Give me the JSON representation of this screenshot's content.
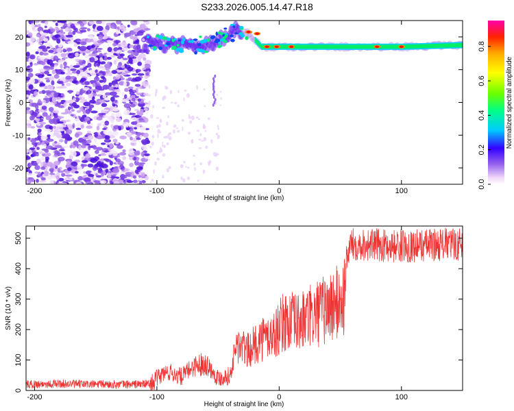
{
  "page_title": "S233.2026.005.14.47.R18",
  "chart_data": [
    {
      "type": "heatmap",
      "xlabel": "Height of straight line (km)",
      "ylabel": "Frequency (Hz)",
      "xlim": [
        -207,
        150
      ],
      "ylim": [
        -25,
        25
      ],
      "xticks": [
        -200,
        -100,
        0,
        100
      ],
      "yticks": [
        -20,
        -10,
        0,
        10,
        20
      ],
      "tick_labels_x": [
        "-200",
        "-100",
        "0",
        "100"
      ],
      "tick_labels_y": [
        "-20",
        "-10",
        "0",
        "10",
        "20"
      ],
      "colorbar": {
        "label": "Normalized spectral amplitude",
        "range": [
          0.0,
          0.95
        ],
        "ticks": [
          0.0,
          0.2,
          0.4,
          0.6,
          0.8
        ],
        "tick_labels": [
          "0.0",
          "0.2",
          "0.4",
          "0.6",
          "0.8"
        ]
      },
      "features": {
        "noise_region_x": [
          -207,
          -107
        ],
        "ridge": [
          [
            -110,
            18
          ],
          [
            -90,
            18
          ],
          [
            -70,
            17.5
          ],
          [
            -55,
            18
          ],
          [
            -45,
            20
          ],
          [
            -35,
            22
          ],
          [
            -25,
            21
          ],
          [
            -15,
            17
          ],
          [
            0,
            17
          ],
          [
            20,
            17
          ],
          [
            60,
            17
          ],
          [
            100,
            17
          ],
          [
            150,
            17.5
          ]
        ]
      },
      "grid": false
    },
    {
      "type": "line",
      "xlabel": "Height of straight line (km)",
      "ylabel": "SNR (10 * v/v)",
      "xlim": [
        -207,
        150
      ],
      "ylim": [
        0,
        540
      ],
      "xticks": [
        -200,
        -100,
        0,
        100
      ],
      "yticks": [
        0,
        100,
        200,
        300,
        400,
        500
      ],
      "tick_labels_x": [
        "-200",
        "-100",
        "0",
        "100"
      ],
      "tick_labels_y": [
        "0",
        "100",
        "200",
        "300",
        "400",
        "500"
      ],
      "series": [
        {
          "color": "#ee3333",
          "x": [
            -207,
            -180,
            -150,
            -120,
            -105,
            -95,
            -90,
            -80,
            -70,
            -60,
            -50,
            -40,
            -35,
            -25,
            -15,
            -5,
            5,
            15,
            25,
            35,
            45,
            53,
            55,
            58,
            70,
            90,
            110,
            130,
            150
          ],
          "y": [
            20,
            22,
            20,
            20,
            22,
            55,
            60,
            45,
            80,
            90,
            40,
            50,
            150,
            130,
            170,
            180,
            230,
            220,
            240,
            260,
            280,
            300,
            420,
            480,
            480,
            475,
            475,
            480,
            480
          ]
        }
      ],
      "grid": false
    }
  ]
}
